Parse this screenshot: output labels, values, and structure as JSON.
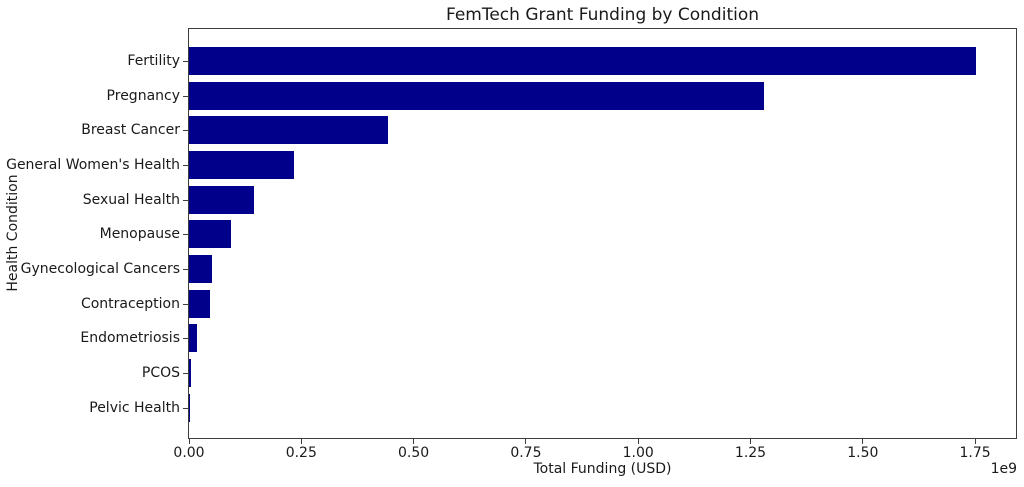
{
  "chart_data": {
    "type": "bar",
    "orientation": "horizontal",
    "title": "FemTech Grant Funding by Condition",
    "xlabel": "Total Funding (USD)",
    "ylabel": "Health Condition",
    "x_offset_text": "1e9",
    "categories": [
      "Fertility",
      "Pregnancy",
      "Breast Cancer",
      "General Women's Health",
      "Sexual Health",
      "Menopause",
      "Gynecological Cancers",
      "Contraception",
      "Endometriosis",
      "PCOS",
      "Pelvic Health"
    ],
    "values": [
      1752000000,
      1279000000,
      443000000,
      233000000,
      145000000,
      94000000,
      51000000,
      47000000,
      18000000,
      4000000,
      500000
    ],
    "xlim": [
      0,
      1841000000
    ],
    "xticks": [
      0,
      250000000,
      500000000,
      750000000,
      1000000000,
      1250000000,
      1500000000,
      1750000000
    ],
    "xtick_labels": [
      "0.00",
      "0.25",
      "0.50",
      "0.75",
      "1.00",
      "1.25",
      "1.50",
      "1.75"
    ],
    "bar_color": "#00008B",
    "background_color": "#ffffff",
    "grid": false,
    "legend": null
  }
}
